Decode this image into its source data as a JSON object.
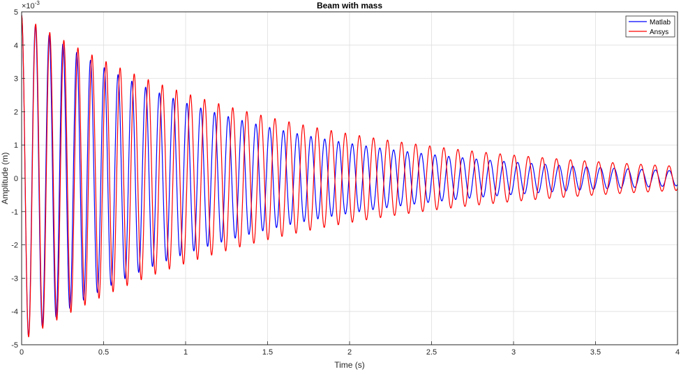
{
  "chart_data": {
    "type": "line",
    "title": "Beam with mass",
    "xlabel": "Time (s)",
    "ylabel": "Amplitude (m)",
    "y_exponent_label": "×10",
    "y_exponent_power": "-3",
    "xlim": [
      0,
      4
    ],
    "ylim": [
      -0.005,
      0.005
    ],
    "xticks": [
      0,
      0.5,
      1,
      1.5,
      2,
      2.5,
      3,
      3.5,
      4
    ],
    "xtick_labels": [
      "0",
      "0.5",
      "1",
      "1.5",
      "2",
      "2.5",
      "3",
      "3.5",
      "4"
    ],
    "yticks": [
      -5,
      -4,
      -3,
      -2,
      -1,
      0,
      1,
      2,
      3,
      4,
      5
    ],
    "ytick_labels": [
      "-5",
      "-4",
      "-3",
      "-2",
      "-1",
      "0",
      "1",
      "2",
      "3",
      "4",
      "5"
    ],
    "grid": true,
    "legend_position": "top-right",
    "series": [
      {
        "name": "Matlab",
        "color": "#0000ff",
        "model": "damped_cosine",
        "amplitude": 0.0049,
        "decay_rate": 0.77,
        "frequency_hz": 11.9,
        "phase": 0
      },
      {
        "name": "Ansys",
        "color": "#ff0000",
        "model": "damped_cosine",
        "amplitude": 0.0049,
        "decay_rate": 0.65,
        "frequency_hz": 11.65,
        "phase": 0
      }
    ]
  }
}
